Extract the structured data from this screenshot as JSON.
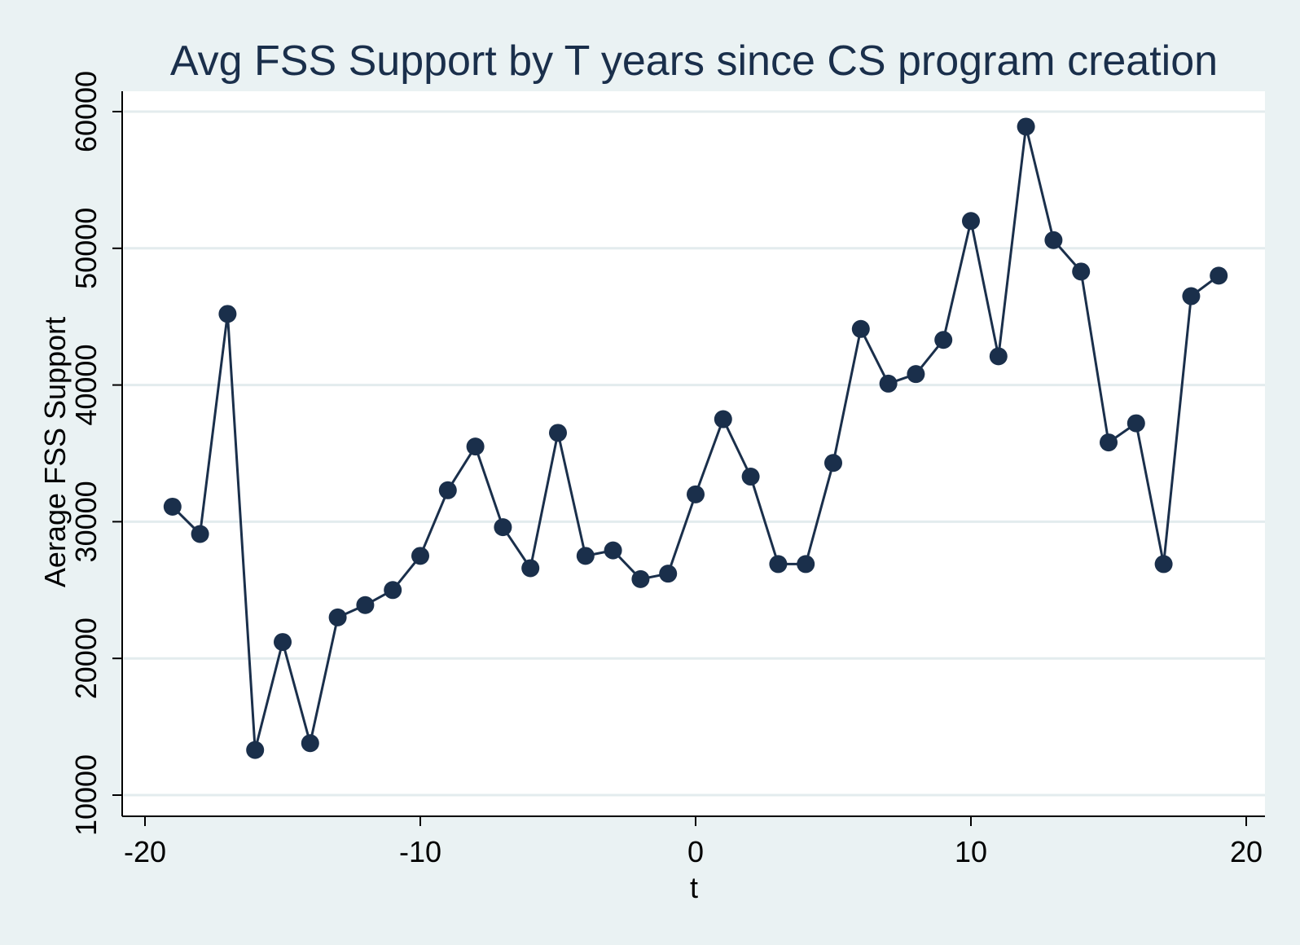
{
  "chart_data": {
    "type": "line",
    "title": "Avg FSS Support by T years since CS program creation",
    "xlabel": "t",
    "ylabel": "Aerage FSS Support",
    "xlim": [
      -20,
      20
    ],
    "ylim": [
      10000,
      60000
    ],
    "xticks": [
      "-20",
      "-10",
      "0",
      "10",
      "20"
    ],
    "yticks": [
      "10000",
      "20000",
      "30000",
      "40000",
      "50000",
      "60000"
    ],
    "grid": "horizontal",
    "series_color": "#1a2f4b",
    "background_color": "#eaf2f3",
    "plot_background_color": "#ffffff",
    "x": [
      -19,
      -18,
      -17,
      -16,
      -15,
      -14,
      -13,
      -12,
      -11,
      -10,
      -9,
      -8,
      -7,
      -6,
      -5,
      -4,
      -3,
      -2,
      -1,
      0,
      1,
      2,
      3,
      4,
      5,
      6,
      7,
      8,
      9,
      10,
      11,
      12,
      13,
      14,
      15,
      16,
      17,
      18,
      19
    ],
    "values": [
      31100,
      29100,
      45200,
      13300,
      21200,
      13800,
      23000,
      23900,
      25000,
      27500,
      32300,
      35500,
      29600,
      26600,
      36500,
      27500,
      27900,
      25800,
      26200,
      32000,
      37500,
      33300,
      26900,
      26900,
      34300,
      44100,
      40100,
      40800,
      43300,
      52000,
      42100,
      58900,
      50600,
      48300,
      35800,
      37200,
      26900,
      46500,
      48000
    ]
  }
}
